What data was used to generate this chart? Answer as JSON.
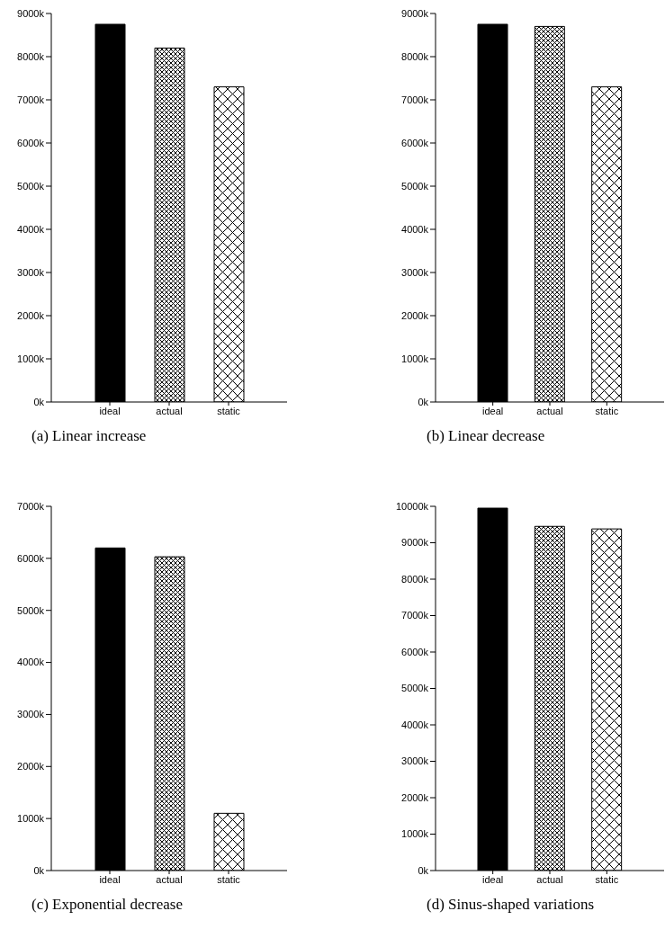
{
  "chart_data": [
    {
      "type": "bar",
      "title": "(a) Linear increase",
      "categories": [
        "ideal",
        "actual",
        "static"
      ],
      "values": [
        8750,
        8200,
        7300
      ],
      "colors": [
        "#000000",
        "#000000",
        "#000000"
      ],
      "ylim": [
        0,
        9000
      ],
      "yticks": [
        {
          "value": 0,
          "label": "0k"
        },
        {
          "value": 1000,
          "label": "1000k"
        },
        {
          "value": 2000,
          "label": "2000k"
        },
        {
          "value": 3000,
          "label": "3000k"
        },
        {
          "value": 4000,
          "label": "4000k"
        },
        {
          "value": 5000,
          "label": "5000k"
        },
        {
          "value": 6000,
          "label": "6000k"
        },
        {
          "value": 7000,
          "label": "7000k"
        },
        {
          "value": 8000,
          "label": "8000k"
        },
        {
          "value": 9000,
          "label": "9000k"
        }
      ],
      "grid": false,
      "legend": false
    },
    {
      "type": "bar",
      "title": "(b) Linear decrease",
      "categories": [
        "ideal",
        "actual",
        "static"
      ],
      "values": [
        8750,
        8700,
        7300
      ],
      "colors": [
        "#000000",
        "#000000",
        "#000000"
      ],
      "ylim": [
        0,
        9000
      ],
      "yticks": [
        {
          "value": 0,
          "label": "0k"
        },
        {
          "value": 1000,
          "label": "1000k"
        },
        {
          "value": 2000,
          "label": "2000k"
        },
        {
          "value": 3000,
          "label": "3000k"
        },
        {
          "value": 4000,
          "label": "4000k"
        },
        {
          "value": 5000,
          "label": "5000k"
        },
        {
          "value": 6000,
          "label": "6000k"
        },
        {
          "value": 7000,
          "label": "7000k"
        },
        {
          "value": 8000,
          "label": "8000k"
        },
        {
          "value": 9000,
          "label": "9000k"
        }
      ],
      "grid": false,
      "legend": false
    },
    {
      "type": "bar",
      "title": "(c) Exponential decrease",
      "categories": [
        "ideal",
        "actual",
        "static"
      ],
      "values": [
        6200,
        6030,
        1100
      ],
      "colors": [
        "#000000",
        "#000000",
        "#000000"
      ],
      "ylim": [
        0,
        7000
      ],
      "yticks": [
        {
          "value": 0,
          "label": "0k"
        },
        {
          "value": 1000,
          "label": "1000k"
        },
        {
          "value": 2000,
          "label": "2000k"
        },
        {
          "value": 3000,
          "label": "3000k"
        },
        {
          "value": 4000,
          "label": "4000k"
        },
        {
          "value": 5000,
          "label": "5000k"
        },
        {
          "value": 6000,
          "label": "6000k"
        },
        {
          "value": 7000,
          "label": "7000k"
        }
      ],
      "grid": false,
      "legend": false
    },
    {
      "type": "bar",
      "title": "(d) Sinus-shaped variations",
      "categories": [
        "ideal",
        "actual",
        "static"
      ],
      "values": [
        9950,
        9450,
        9380
      ],
      "colors": [
        "#000000",
        "#000000",
        "#000000"
      ],
      "ylim": [
        0,
        10000
      ],
      "yticks": [
        {
          "value": 0,
          "label": "0k"
        },
        {
          "value": 1000,
          "label": "1000k"
        },
        {
          "value": 2000,
          "label": "2000k"
        },
        {
          "value": 3000,
          "label": "3000k"
        },
        {
          "value": 4000,
          "label": "4000k"
        },
        {
          "value": 5000,
          "label": "5000k"
        },
        {
          "value": 6000,
          "label": "6000k"
        },
        {
          "value": 7000,
          "label": "7000k"
        },
        {
          "value": 8000,
          "label": "8000k"
        },
        {
          "value": 9000,
          "label": "9000k"
        },
        {
          "value": 10000,
          "label": "10000k"
        }
      ],
      "grid": false,
      "legend": false
    }
  ]
}
